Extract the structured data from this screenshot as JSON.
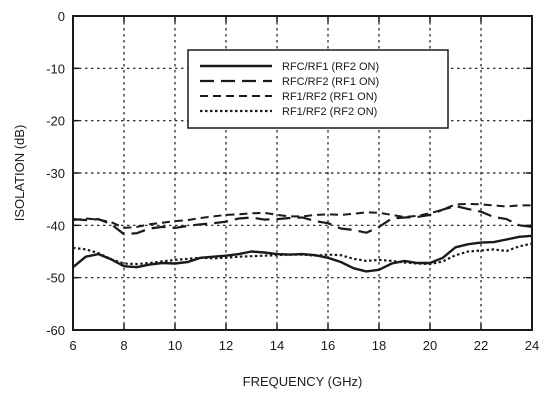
{
  "chart_data": {
    "type": "line",
    "title": "",
    "xlabel": "FREQUENCY (GHz)",
    "ylabel": "ISOLATION (dB)",
    "xlim": [
      6,
      24
    ],
    "ylim": [
      -60,
      0
    ],
    "xticks": [
      6,
      8,
      10,
      12,
      14,
      16,
      18,
      20,
      22,
      24
    ],
    "yticks": [
      0,
      -10,
      -20,
      -30,
      -40,
      -50,
      -60
    ],
    "grid": true,
    "legend_position": "top-right",
    "series": [
      {
        "name": "RFC/RF1 (RF2 ON)",
        "style": "solid",
        "x": [
          6,
          6.5,
          7,
          7.5,
          8,
          8.5,
          9,
          9.5,
          10,
          10.5,
          11,
          11.5,
          12,
          12.5,
          13,
          13.5,
          14,
          14.5,
          15,
          15.5,
          16,
          16.5,
          17,
          17.5,
          18,
          18.5,
          19,
          19.5,
          20,
          20.5,
          21,
          21.5,
          22,
          22.5,
          23,
          23.5,
          24
        ],
        "y": [
          -48,
          -46,
          -45.5,
          -46.5,
          -47.8,
          -48,
          -47.5,
          -47.2,
          -47.3,
          -47,
          -46.2,
          -46,
          -45.8,
          -45.5,
          -45,
          -45.2,
          -45.5,
          -45.6,
          -45.5,
          -45.7,
          -46.2,
          -47,
          -48.2,
          -48.8,
          -48.5,
          -47.3,
          -46.8,
          -47.2,
          -47.2,
          -46.2,
          -44.2,
          -43.6,
          -43.3,
          -43.2,
          -42.7,
          -42.2,
          -42
        ]
      },
      {
        "name": "RFC/RF2 (RF1 ON)",
        "style": "long-dash",
        "x": [
          6,
          6.5,
          7,
          7.5,
          8,
          8.5,
          9,
          9.5,
          10,
          10.5,
          11,
          11.5,
          12,
          12.5,
          13,
          13.5,
          14,
          14.5,
          15,
          15.5,
          16,
          16.5,
          17,
          17.5,
          18,
          18.5,
          19,
          19.5,
          20,
          20.5,
          21,
          21.5,
          22,
          22.5,
          23,
          23.5,
          24
        ],
        "y": [
          -38.8,
          -39,
          -38.8,
          -39.8,
          -41.7,
          -41.5,
          -40.6,
          -40.3,
          -40.5,
          -40.1,
          -39.8,
          -39.6,
          -39.3,
          -38.7,
          -38.5,
          -38.9,
          -38.8,
          -38.6,
          -38.5,
          -39.2,
          -39.6,
          -40.6,
          -40.9,
          -41.4,
          -40.3,
          -38.7,
          -38.5,
          -38.4,
          -38,
          -37,
          -36.3,
          -36.9,
          -37.4,
          -38.4,
          -38.8,
          -40,
          -40.3
        ]
      },
      {
        "name": "RF1/RF2 (RF1 ON)",
        "style": "dash",
        "x": [
          6,
          6.5,
          7,
          7.5,
          8,
          8.5,
          9,
          9.5,
          10,
          10.5,
          11,
          11.5,
          12,
          12.5,
          13,
          13.5,
          14,
          14.5,
          15,
          15.5,
          16,
          16.5,
          17,
          17.5,
          18,
          18.5,
          19,
          19.5,
          20,
          20.5,
          21,
          21.5,
          22,
          22.5,
          23,
          23.5,
          24
        ],
        "y": [
          -39,
          -38.7,
          -38.9,
          -39.4,
          -40.5,
          -40.3,
          -39.8,
          -39.5,
          -39.2,
          -39,
          -38.6,
          -38.3,
          -38,
          -37.9,
          -37.7,
          -37.6,
          -38,
          -38.3,
          -38.3,
          -38,
          -37.9,
          -38,
          -37.8,
          -37.5,
          -37.6,
          -38,
          -38.4,
          -38.2,
          -37.7,
          -37,
          -36,
          -35.9,
          -36,
          -36.2,
          -36.4,
          -36.2,
          -36.2
        ]
      },
      {
        "name": "RF1/RF2 (RF2 ON)",
        "style": "dot",
        "x": [
          6,
          6.5,
          7,
          7.5,
          8,
          8.5,
          9,
          9.5,
          10,
          10.5,
          11,
          11.5,
          12,
          12.5,
          13,
          13.5,
          14,
          14.5,
          15,
          15.5,
          16,
          16.5,
          17,
          17.5,
          18,
          18.5,
          19,
          19.5,
          20,
          20.5,
          21,
          21.5,
          22,
          22.5,
          23,
          23.5,
          24
        ],
        "y": [
          -44.3,
          -44.6,
          -45.3,
          -46.5,
          -47.3,
          -47.4,
          -47.2,
          -46.9,
          -46.6,
          -46.4,
          -46.2,
          -46.3,
          -46.2,
          -46,
          -45.9,
          -45.8,
          -45.7,
          -45.6,
          -45.6,
          -45.8,
          -45.6,
          -45.7,
          -46.4,
          -46.8,
          -46.6,
          -46.8,
          -47.1,
          -47.3,
          -47.4,
          -46.9,
          -45.7,
          -45,
          -44.8,
          -44.6,
          -44.9,
          -44,
          -43.5
        ]
      }
    ]
  }
}
